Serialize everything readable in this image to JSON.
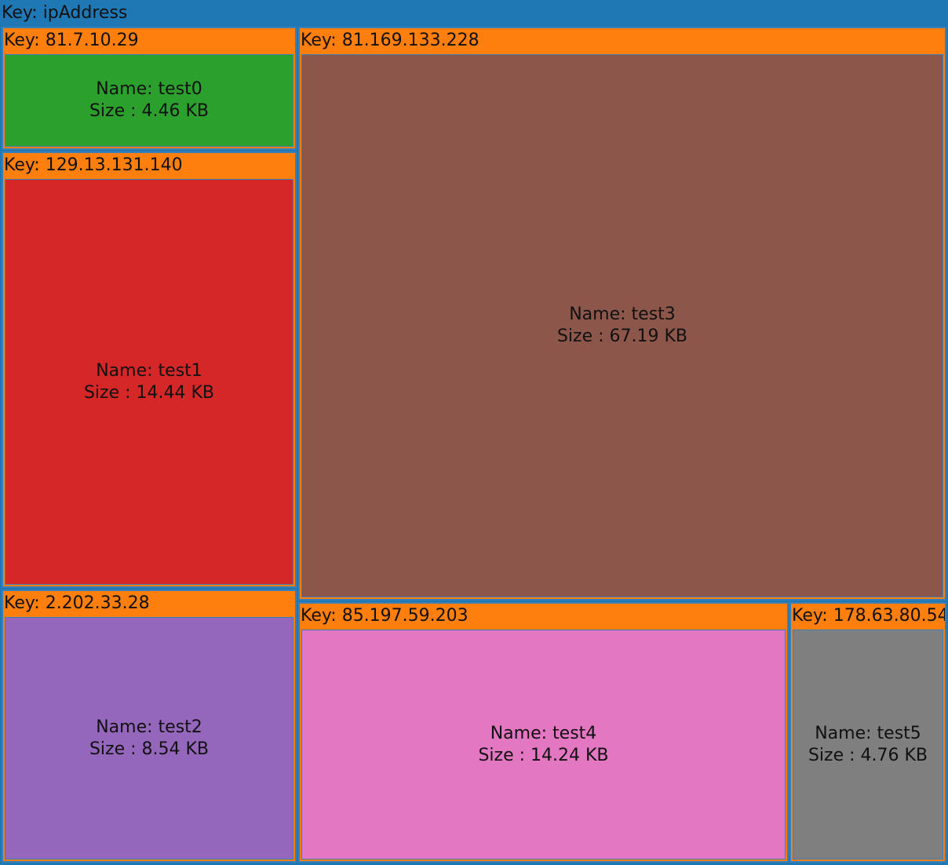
{
  "chart_data": {
    "type": "treemap",
    "title": "Key: ipAddress",
    "root_key": "ipAddress",
    "colors": {
      "root": "#1f77b4",
      "group": "#ff7f0e",
      "test0": "#2ca02c",
      "test1": "#d62728",
      "test2": "#9467bd",
      "test3": "#8c564b",
      "test4": "#e377c2",
      "test5": "#7f7f7f"
    },
    "groups": [
      {
        "header": "Key: 81.7.10.29",
        "key": "81.7.10.29",
        "name": "test0",
        "size_kb": 4.46,
        "name_text": "Name: test0",
        "size_text": "Size : 4.46 KB"
      },
      {
        "header": "Key: 129.13.131.140",
        "key": "129.13.131.140",
        "name": "test1",
        "size_kb": 14.44,
        "name_text": "Name: test1",
        "size_text": "Size : 14.44 KB"
      },
      {
        "header": "Key: 2.202.33.28",
        "key": "2.202.33.28",
        "name": "test2",
        "size_kb": 8.54,
        "name_text": "Name: test2",
        "size_text": "Size : 8.54 KB"
      },
      {
        "header": "Key: 81.169.133.228",
        "key": "81.169.133.228",
        "name": "test3",
        "size_kb": 67.19,
        "name_text": "Name: test3",
        "size_text": "Size : 67.19 KB"
      },
      {
        "header": "Key: 85.197.59.203",
        "key": "85.197.59.203",
        "name": "test4",
        "size_kb": 14.24,
        "name_text": "Name: test4",
        "size_text": "Size : 14.24 KB"
      },
      {
        "header": "Key: 178.63.80.54",
        "key": "178.63.80.54",
        "name": "test5",
        "size_kb": 4.76,
        "name_text": "Name: test5",
        "size_text": "Size : 4.76 KB"
      }
    ]
  }
}
